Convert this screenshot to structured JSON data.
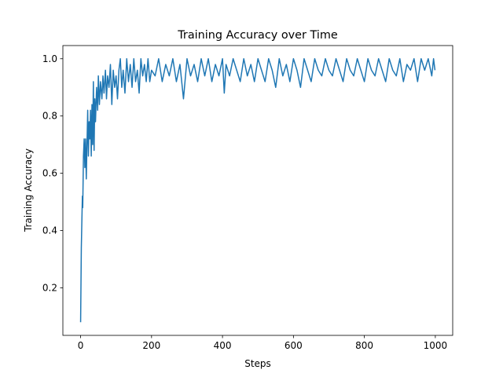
{
  "chart_data": {
    "type": "line",
    "title": "Training Accuracy over Time",
    "x_label": "Steps",
    "y_label": "Training Accuracy",
    "color": "#1f77b4",
    "x": [
      0,
      2,
      5,
      6,
      8,
      10,
      12,
      14,
      16,
      18,
      20,
      22,
      24,
      26,
      28,
      30,
      32,
      34,
      36,
      38,
      40,
      42,
      45,
      48,
      50,
      53,
      56,
      60,
      63,
      66,
      70,
      73,
      76,
      80,
      84,
      88,
      92,
      96,
      100,
      104,
      108,
      112,
      116,
      120,
      125,
      130,
      135,
      140,
      145,
      150,
      155,
      160,
      165,
      170,
      175,
      180,
      185,
      190,
      195,
      200,
      210,
      220,
      230,
      240,
      250,
      260,
      270,
      280,
      290,
      300,
      310,
      320,
      330,
      340,
      350,
      360,
      370,
      380,
      390,
      400,
      405,
      410,
      420,
      430,
      440,
      450,
      460,
      470,
      480,
      490,
      500,
      510,
      520,
      530,
      540,
      550,
      560,
      570,
      580,
      590,
      600,
      610,
      620,
      630,
      640,
      650,
      660,
      670,
      680,
      690,
      700,
      710,
      720,
      730,
      740,
      750,
      760,
      770,
      780,
      790,
      800,
      810,
      820,
      830,
      840,
      850,
      860,
      870,
      880,
      890,
      900,
      910,
      920,
      930,
      940,
      950,
      960,
      970,
      980,
      990,
      995,
      999
    ],
    "values": [
      0.08,
      0.34,
      0.52,
      0.48,
      0.66,
      0.72,
      0.62,
      0.72,
      0.58,
      0.7,
      0.82,
      0.66,
      0.78,
      0.72,
      0.82,
      0.66,
      0.84,
      0.7,
      0.92,
      0.68,
      0.86,
      0.78,
      0.9,
      0.82,
      0.94,
      0.84,
      0.92,
      0.86,
      0.94,
      0.88,
      0.96,
      0.86,
      0.94,
      0.9,
      0.98,
      0.84,
      0.96,
      0.9,
      0.94,
      0.86,
      0.96,
      1.0,
      0.9,
      0.96,
      0.88,
      1.0,
      0.92,
      0.98,
      0.9,
      1.0,
      0.92,
      0.96,
      0.88,
      1.0,
      0.94,
      0.98,
      0.92,
      1.0,
      0.92,
      0.96,
      0.94,
      1.0,
      0.92,
      0.98,
      0.94,
      1.0,
      0.92,
      0.98,
      0.86,
      1.0,
      0.94,
      0.98,
      0.92,
      1.0,
      0.94,
      1.0,
      0.92,
      0.98,
      0.94,
      1.0,
      0.88,
      0.98,
      0.94,
      1.0,
      0.96,
      0.92,
      1.0,
      0.94,
      0.98,
      0.92,
      1.0,
      0.96,
      0.92,
      1.0,
      0.96,
      0.9,
      1.0,
      0.94,
      0.98,
      0.92,
      1.0,
      0.96,
      0.9,
      1.0,
      0.96,
      0.92,
      1.0,
      0.96,
      0.94,
      1.0,
      0.96,
      0.94,
      1.0,
      0.96,
      0.92,
      1.0,
      0.96,
      0.94,
      1.0,
      0.96,
      0.92,
      1.0,
      0.96,
      0.94,
      1.0,
      0.96,
      0.92,
      1.0,
      0.96,
      0.94,
      1.0,
      0.92,
      0.98,
      0.96,
      1.0,
      0.92,
      1.0,
      0.96,
      1.0,
      0.94,
      1.0,
      0.96
    ],
    "xlim": [
      -50,
      1049
    ],
    "ylim": [
      0.034,
      1.046
    ],
    "xticks": [
      0,
      200,
      400,
      600,
      800,
      1000
    ],
    "yticks": [
      0.2,
      0.4,
      0.6,
      0.8,
      {
        "value": 1,
        "label": "1.0"
      }
    ]
  }
}
